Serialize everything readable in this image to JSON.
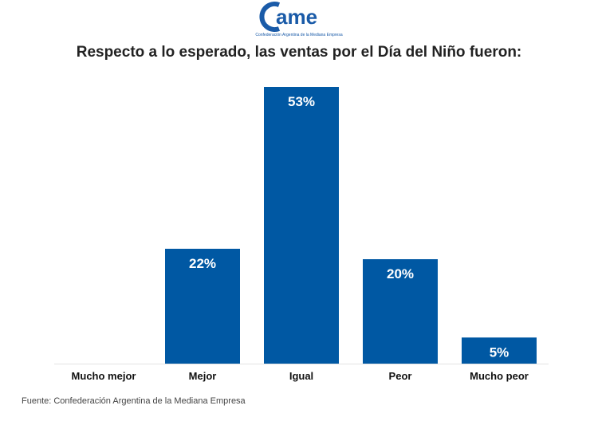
{
  "logo": {
    "text": "came",
    "subtitle": "Confederación Argentina de la Mediana Empresa",
    "color": "#1a5ba8"
  },
  "chart_data": {
    "type": "bar",
    "title": "Respecto a lo esperado, las ventas por el Día del Niño fueron:",
    "categories": [
      "Mucho mejor",
      "Mejor",
      "Igual",
      "Peor",
      "Mucho peor"
    ],
    "values": [
      0,
      22,
      53,
      20,
      5
    ],
    "data_labels": [
      "",
      "22%",
      "53%",
      "20%",
      "5%"
    ],
    "xlabel": "",
    "ylabel": "",
    "ylim": [
      0,
      53
    ],
    "grid": false,
    "bar_color": "#0058a3"
  },
  "source": "Fuente: Confederación Argentina de la Mediana Empresa"
}
